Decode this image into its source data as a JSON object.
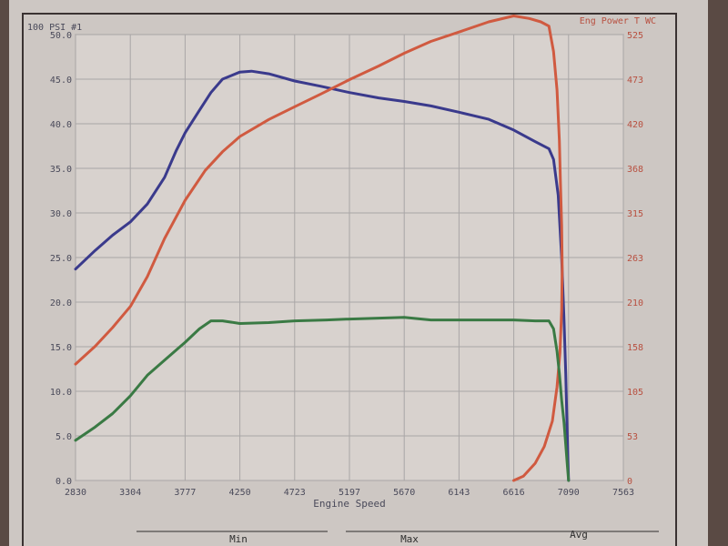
{
  "chart_data": {
    "type": "line",
    "xlabel": "Engine Speed",
    "ylabel_left": "100 PSI #1",
    "ylabel_right": "Eng Power T WC",
    "x_ticks": [
      "2830",
      "3304",
      "3777",
      "4250",
      "4723",
      "5197",
      "5670",
      "6143",
      "6616",
      "7090",
      "7563"
    ],
    "y_left_ticks": [
      "0.0",
      "5.0",
      "10.0",
      "15.0",
      "20.0",
      "25.0",
      "30.0",
      "35.0",
      "40.0",
      "45.0",
      "50.0"
    ],
    "y_right_ticks": [
      "0",
      "53",
      "105",
      "158",
      "210",
      "263",
      "315",
      "368",
      "420",
      "473",
      "525"
    ],
    "xlim": [
      2830,
      7563
    ],
    "ylim_left": [
      0,
      50
    ],
    "ylim_right": [
      0,
      525
    ],
    "grid": true,
    "series": [
      {
        "axis": "left",
        "color": "#3a3a8c",
        "points": [
          [
            2830,
            23.7
          ],
          [
            3000,
            25.8
          ],
          [
            3150,
            27.5
          ],
          [
            3304,
            29.0
          ],
          [
            3450,
            31.0
          ],
          [
            3600,
            34.0
          ],
          [
            3700,
            37.0
          ],
          [
            3777,
            39.0
          ],
          [
            3900,
            41.5
          ],
          [
            4000,
            43.5
          ],
          [
            4100,
            45.0
          ],
          [
            4250,
            45.8
          ],
          [
            4350,
            45.9
          ],
          [
            4500,
            45.6
          ],
          [
            4723,
            44.8
          ],
          [
            4950,
            44.2
          ],
          [
            5197,
            43.5
          ],
          [
            5450,
            42.9
          ],
          [
            5670,
            42.5
          ],
          [
            5900,
            42.0
          ],
          [
            6143,
            41.3
          ],
          [
            6400,
            40.5
          ],
          [
            6616,
            39.3
          ],
          [
            6800,
            38.0
          ],
          [
            6920,
            37.2
          ],
          [
            6960,
            36.0
          ],
          [
            7000,
            32.0
          ],
          [
            7030,
            25.0
          ],
          [
            7050,
            18.0
          ],
          [
            7065,
            12.0
          ],
          [
            7075,
            7.0
          ],
          [
            7085,
            2.0
          ],
          [
            7090,
            0.0
          ]
        ]
      },
      {
        "axis": "right",
        "color": "#d05a40",
        "points": [
          [
            2830,
            137
          ],
          [
            3000,
            158
          ],
          [
            3150,
            180
          ],
          [
            3304,
            205
          ],
          [
            3450,
            240
          ],
          [
            3600,
            285
          ],
          [
            3777,
            330
          ],
          [
            3950,
            365
          ],
          [
            4100,
            387
          ],
          [
            4250,
            405
          ],
          [
            4500,
            425
          ],
          [
            4723,
            440
          ],
          [
            4950,
            455
          ],
          [
            5197,
            472
          ],
          [
            5450,
            488
          ],
          [
            5670,
            503
          ],
          [
            5900,
            517
          ],
          [
            6143,
            528
          ],
          [
            6400,
            540
          ],
          [
            6616,
            547
          ],
          [
            6750,
            544
          ],
          [
            6850,
            540
          ],
          [
            6920,
            535
          ],
          [
            6960,
            505
          ],
          [
            6990,
            460
          ],
          [
            7010,
            400
          ],
          [
            7020,
            350
          ],
          [
            7030,
            300
          ],
          [
            7035,
            250
          ],
          [
            7030,
            200
          ],
          [
            7015,
            150
          ],
          [
            6990,
            110
          ],
          [
            6950,
            70
          ],
          [
            6880,
            40
          ],
          [
            6800,
            20
          ],
          [
            6700,
            5
          ],
          [
            6616,
            0
          ]
        ]
      },
      {
        "axis": "left",
        "color": "#3a7a44",
        "points": [
          [
            2830,
            4.5
          ],
          [
            3000,
            6.0
          ],
          [
            3150,
            7.5
          ],
          [
            3304,
            9.5
          ],
          [
            3450,
            11.8
          ],
          [
            3600,
            13.5
          ],
          [
            3777,
            15.5
          ],
          [
            3900,
            17.0
          ],
          [
            4000,
            17.9
          ],
          [
            4100,
            17.9
          ],
          [
            4250,
            17.6
          ],
          [
            4500,
            17.7
          ],
          [
            4723,
            17.9
          ],
          [
            5000,
            18.0
          ],
          [
            5197,
            18.1
          ],
          [
            5450,
            18.2
          ],
          [
            5670,
            18.3
          ],
          [
            5900,
            18.0
          ],
          [
            6143,
            18.0
          ],
          [
            6400,
            18.0
          ],
          [
            6616,
            18.0
          ],
          [
            6800,
            17.9
          ],
          [
            6920,
            17.9
          ],
          [
            6960,
            17.0
          ],
          [
            6990,
            14.5
          ],
          [
            7010,
            12.0
          ],
          [
            7030,
            9.0
          ],
          [
            7050,
            6.5
          ],
          [
            7065,
            4.0
          ],
          [
            7080,
            1.5
          ],
          [
            7090,
            0.0
          ]
        ]
      }
    ]
  },
  "footer": {
    "min_label": "Min",
    "max_label": "Max",
    "avg_label": "Avg"
  }
}
